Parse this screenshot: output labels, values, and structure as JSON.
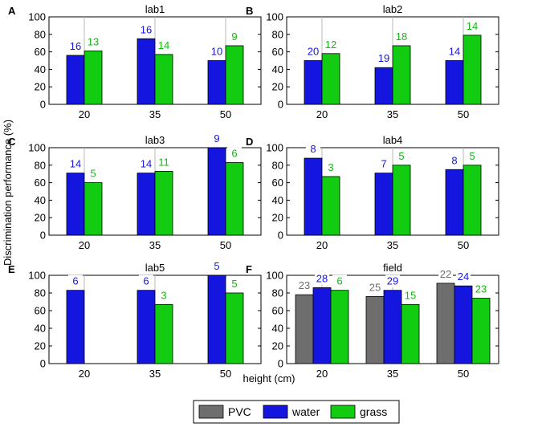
{
  "figure": {
    "ylabel": "Discrimination performance (%)",
    "xlabel": "height (cm)",
    "legend": [
      {
        "name": "PVC",
        "color": "#6e6e6e"
      },
      {
        "name": "water",
        "color": "#1515e0"
      },
      {
        "name": "grass",
        "color": "#11cc11"
      }
    ],
    "label_colors": {
      "PVC": "#6e6e6e",
      "water": "#1515e0",
      "grass": "#11bb11"
    }
  },
  "chart_data": [
    {
      "type": "bar",
      "panel": "A",
      "title": "lab1",
      "categories": [
        "20",
        "35",
        "50"
      ],
      "ylim": [
        0,
        100
      ],
      "yticks": [
        0,
        20,
        40,
        60,
        80,
        100
      ],
      "series": [
        {
          "name": "water",
          "values": [
            56,
            75,
            50
          ],
          "labels": [
            "16",
            "16",
            "10"
          ]
        },
        {
          "name": "grass",
          "values": [
            61,
            57,
            67
          ],
          "labels": [
            "13",
            "14",
            "9"
          ]
        }
      ]
    },
    {
      "type": "bar",
      "panel": "B",
      "title": "lab2",
      "categories": [
        "20",
        "35",
        "50"
      ],
      "ylim": [
        0,
        100
      ],
      "yticks": [
        0,
        20,
        40,
        60,
        80,
        100
      ],
      "series": [
        {
          "name": "water",
          "values": [
            50,
            42,
            50
          ],
          "labels": [
            "20",
            "19",
            "14"
          ]
        },
        {
          "name": "grass",
          "values": [
            58,
            67,
            79
          ],
          "labels": [
            "12",
            "18",
            "14"
          ]
        }
      ]
    },
    {
      "type": "bar",
      "panel": "C",
      "title": "lab3",
      "categories": [
        "20",
        "35",
        "50"
      ],
      "ylim": [
        0,
        100
      ],
      "yticks": [
        0,
        20,
        40,
        60,
        80,
        100
      ],
      "series": [
        {
          "name": "water",
          "values": [
            71,
            71,
            100
          ],
          "labels": [
            "14",
            "14",
            "9"
          ]
        },
        {
          "name": "grass",
          "values": [
            60,
            73,
            83
          ],
          "labels": [
            "5",
            "11",
            "6"
          ]
        }
      ]
    },
    {
      "type": "bar",
      "panel": "D",
      "title": "lab4",
      "categories": [
        "20",
        "35",
        "50"
      ],
      "ylim": [
        0,
        100
      ],
      "yticks": [
        0,
        20,
        40,
        60,
        80,
        100
      ],
      "series": [
        {
          "name": "water",
          "values": [
            88,
            71,
            75
          ],
          "labels": [
            "8",
            "7",
            "8"
          ]
        },
        {
          "name": "grass",
          "values": [
            67,
            80,
            80
          ],
          "labels": [
            "3",
            "5",
            "5"
          ]
        }
      ]
    },
    {
      "type": "bar",
      "panel": "E",
      "title": "lab5",
      "categories": [
        "20",
        "35",
        "50"
      ],
      "ylim": [
        0,
        100
      ],
      "yticks": [
        0,
        20,
        40,
        60,
        80,
        100
      ],
      "series": [
        {
          "name": "water",
          "values": [
            83,
            83,
            100
          ],
          "labels": [
            "6",
            "6",
            "5"
          ]
        },
        {
          "name": "grass",
          "values": [
            null,
            67,
            80
          ],
          "labels": [
            null,
            "3",
            "5"
          ]
        }
      ]
    },
    {
      "type": "bar",
      "panel": "F",
      "title": "field",
      "categories": [
        "20",
        "35",
        "50"
      ],
      "ylim": [
        0,
        100
      ],
      "yticks": [
        0,
        20,
        40,
        60,
        80,
        100
      ],
      "series": [
        {
          "name": "PVC",
          "values": [
            78,
            76,
            91
          ],
          "labels": [
            "23",
            "25",
            "22"
          ]
        },
        {
          "name": "water",
          "values": [
            86,
            83,
            88
          ],
          "labels": [
            "28",
            "29",
            "24"
          ]
        },
        {
          "name": "grass",
          "values": [
            83,
            67,
            74
          ],
          "labels": [
            "6",
            "15",
            "23"
          ]
        }
      ]
    }
  ]
}
